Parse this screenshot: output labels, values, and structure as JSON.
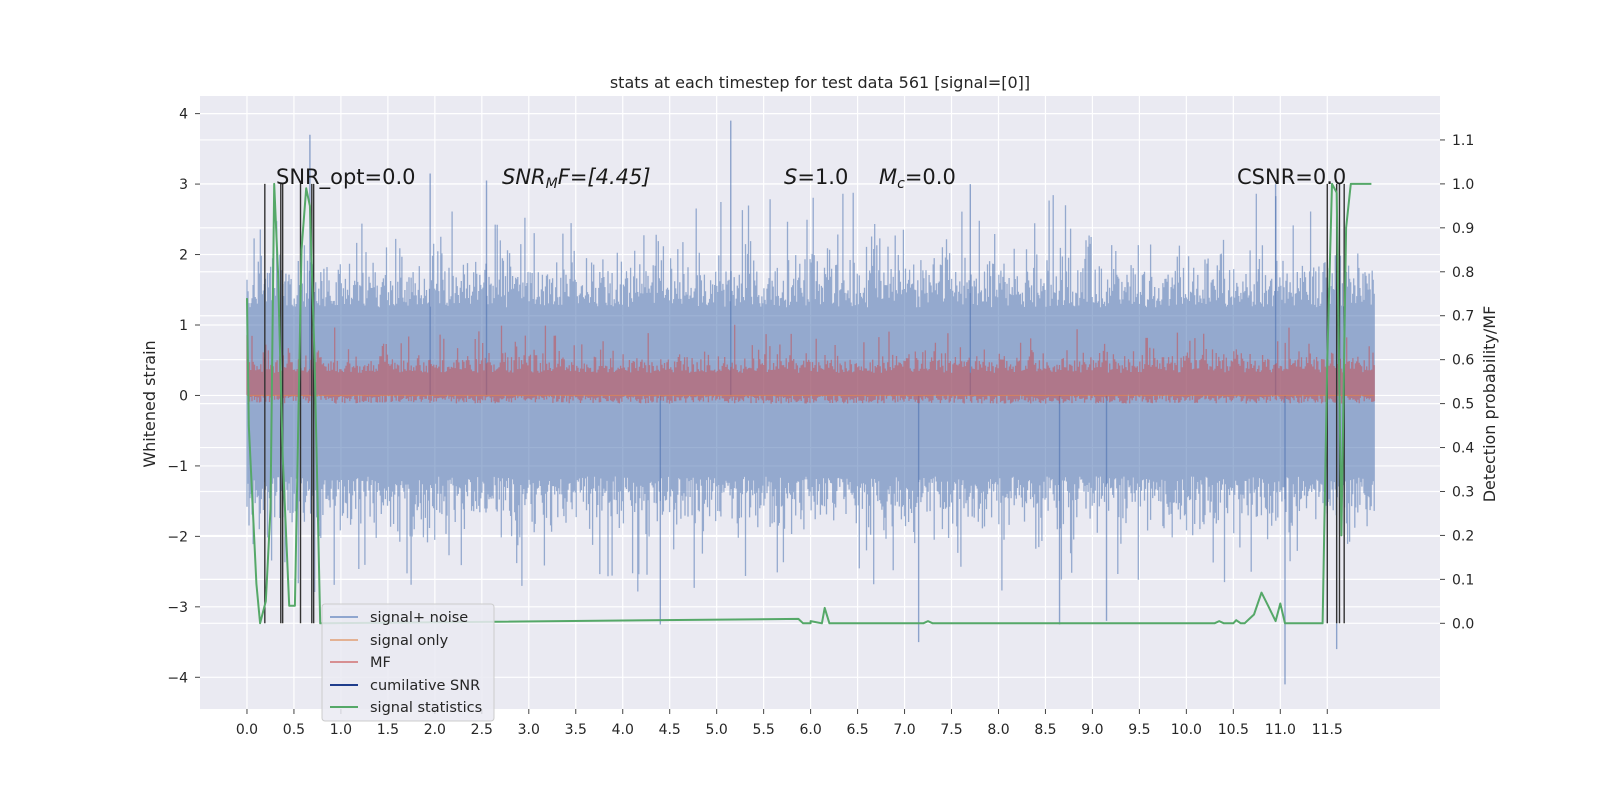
{
  "chart_data": {
    "type": "line",
    "title": "stats at each timestep for test data 561 [signal=[0]]",
    "ylabel_left": "Whitened strain",
    "ylabel_right": "Detection probability/MF",
    "xlim": [
      -0.5,
      12.7
    ],
    "ylim_left": [
      -4.45,
      4.25
    ],
    "ylim_right": [
      -0.195,
      1.2
    ],
    "x_ticks": [
      "0.0",
      "0.5",
      "1.0",
      "1.5",
      "2.0",
      "2.5",
      "3.0",
      "3.5",
      "4.0",
      "4.5",
      "5.0",
      "5.5",
      "6.0",
      "6.5",
      "7.0",
      "7.5",
      "8.0",
      "8.5",
      "9.0",
      "9.5",
      "10.0",
      "10.5",
      "11.0",
      "11.5"
    ],
    "y_ticks_left": [
      "4",
      "3",
      "2",
      "1",
      "0",
      "−1",
      "−2",
      "−3",
      "−4"
    ],
    "y_ticks_right": [
      "1.1",
      "1.0",
      "0.9",
      "0.8",
      "0.7",
      "0.6",
      "0.5",
      "0.4",
      "0.3",
      "0.2",
      "0.1",
      "0.0"
    ],
    "grid": true,
    "legend_position": "lower-left",
    "annotations": {
      "snr_opt": "SNR_opt=0.0",
      "snr_mf_italic": "SNR",
      "snr_mf_sub": "M",
      "snr_mf_rest": "F=[4.45]",
      "s_italic": "S",
      "s_rest": "=1.0",
      "mc_italic": "M",
      "mc_sub": "c",
      "mc_rest": "=0.0",
      "csnr": "CSNR=0.0"
    },
    "colors": {
      "signal_noise": "#4c72b0",
      "signal_only": "#dd8452",
      "mf": "#c44e52",
      "cumulative_snr": "#1f3d8c",
      "signal_statistics": "#55a868",
      "axes_bg": "#eaeaf2",
      "grid": "#ffffff"
    },
    "series": [
      {
        "name": "signal+ noise",
        "axis": "left",
        "x_range": [
          0.0,
          12.0
        ],
        "envelope": "noise fill between approx -1.3 and +1.5 with spikes up to 3.9 and down to -4.1",
        "spikes_up": [
          [
            0.67,
            3.7
          ],
          [
            5.15,
            3.9
          ],
          [
            2.55,
            3.05
          ],
          [
            1.95,
            3.15
          ],
          [
            7.7,
            3.0
          ],
          [
            10.95,
            3.0
          ]
        ],
        "spikes_down": [
          [
            11.05,
            -4.1
          ],
          [
            11.6,
            -3.6
          ],
          [
            7.15,
            -3.5
          ],
          [
            4.4,
            -3.25
          ],
          [
            8.65,
            -3.25
          ],
          [
            9.15,
            -3.2
          ]
        ]
      },
      {
        "name": "signal only",
        "axis": "left",
        "x": [
          0.0,
          12.0
        ],
        "y": [
          0.0,
          0.0
        ]
      },
      {
        "name": "MF",
        "axis": "right",
        "x_range": [
          0.0,
          12.0
        ],
        "envelope": "values between approx 0.5 and 0.65 with peaks near 0.68"
      },
      {
        "name": "cumilative SNR",
        "axis": "right",
        "vlines_x": [
          0.19,
          0.36,
          0.38,
          0.57,
          0.69,
          0.71,
          11.5,
          11.6,
          11.63,
          11.68
        ],
        "vlines_range": [
          0.0,
          1.0
        ]
      },
      {
        "name": "signal statistics",
        "axis": "right",
        "x": [
          0.0,
          0.02,
          0.1,
          0.14,
          0.2,
          0.25,
          0.29,
          0.33,
          0.38,
          0.45,
          0.51,
          0.58,
          0.63,
          0.67,
          0.72,
          0.78,
          0.8,
          6.0,
          5.87,
          5.92,
          6.0,
          6.12,
          6.15,
          6.2,
          6.25,
          6.5,
          7.2,
          7.25,
          7.3,
          8.0,
          10.3,
          10.35,
          10.4,
          10.5,
          10.53,
          10.58,
          10.62,
          10.67,
          10.72,
          10.8,
          10.87,
          10.95,
          11.0,
          11.05,
          11.1,
          11.15,
          11.45,
          11.5,
          11.55,
          11.6,
          11.65,
          11.7,
          11.75,
          11.8,
          11.9,
          11.97
        ],
        "y": [
          0.74,
          0.45,
          0.09,
          0.0,
          0.05,
          0.26,
          1.0,
          0.8,
          0.38,
          0.04,
          0.04,
          0.85,
          0.99,
          0.95,
          0.6,
          0.0,
          0.0,
          0.0,
          0.01,
          0.0,
          0.005,
          0.0,
          0.035,
          0.0,
          0.0,
          0.0,
          0.0,
          0.005,
          0.0,
          0.0,
          0.0,
          0.005,
          0.0,
          0.0,
          0.007,
          0.0,
          0.0,
          0.01,
          0.02,
          0.07,
          0.04,
          0.005,
          0.045,
          0.0,
          0.0,
          0.0,
          0.0,
          0.6,
          1.0,
          0.98,
          0.2,
          0.9,
          1.0,
          1.0,
          1.0,
          1.0
        ]
      }
    ]
  }
}
